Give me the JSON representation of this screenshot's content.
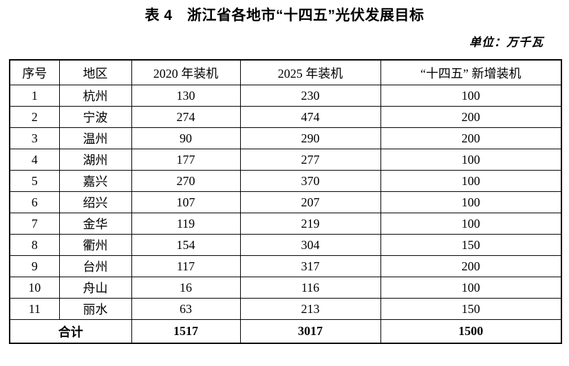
{
  "caption": "表 4　浙江省各地市“十四五”光伏发展目标",
  "unit_label": "单位：万千瓦",
  "table": {
    "headers": [
      "序号",
      "地区",
      "2020 年装机",
      "2025 年装机",
      "“十四五” 新增装机"
    ],
    "columns": [
      "index",
      "region",
      "installed_2020",
      "installed_2025",
      "new_installed_14th_five"
    ],
    "rows": [
      [
        "1",
        "杭州",
        "130",
        "230",
        "100"
      ],
      [
        "2",
        "宁波",
        "274",
        "474",
        "200"
      ],
      [
        "3",
        "温州",
        "90",
        "290",
        "200"
      ],
      [
        "4",
        "湖州",
        "177",
        "277",
        "100"
      ],
      [
        "5",
        "嘉兴",
        "270",
        "370",
        "100"
      ],
      [
        "6",
        "绍兴",
        "107",
        "207",
        "100"
      ],
      [
        "7",
        "金华",
        "119",
        "219",
        "100"
      ],
      [
        "8",
        "衢州",
        "154",
        "304",
        "150"
      ],
      [
        "9",
        "台州",
        "117",
        "317",
        "200"
      ],
      [
        "10",
        "舟山",
        "16",
        "116",
        "100"
      ],
      [
        "11",
        "丽水",
        "63",
        "213",
        "150"
      ]
    ],
    "total": {
      "label": "合计",
      "values": [
        "1517",
        "3017",
        "1500"
      ]
    }
  },
  "colors": {
    "text": "#000000",
    "border": "#000000",
    "background": "#ffffff"
  }
}
